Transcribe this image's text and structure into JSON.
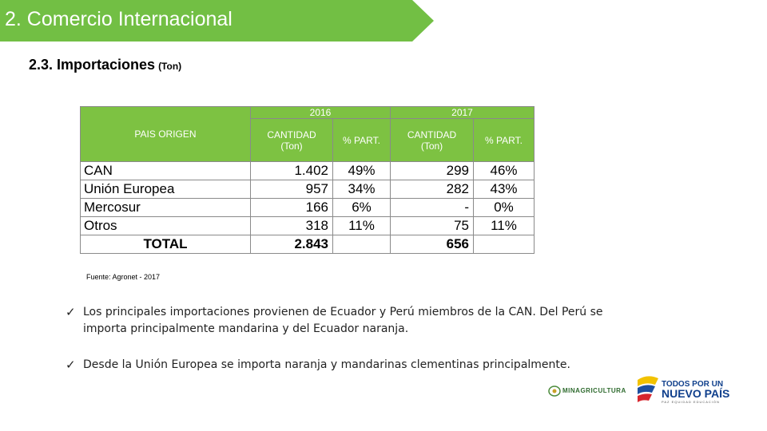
{
  "banner": {
    "title": "2. Comercio Internacional",
    "color": "#72bf44"
  },
  "subtitle": {
    "text": "2.3. Importaciones",
    "unit": "(Ton)"
  },
  "table": {
    "header": {
      "origin": "PAIS ORIGEN",
      "years": [
        "2016",
        "2017"
      ],
      "quantity_line1": "CANTIDAD",
      "quantity_line2": "(Ton)",
      "share": "% PART."
    },
    "rows": [
      {
        "origin": "CAN",
        "qty2016": "1.402",
        "pct2016": "49%",
        "qty2017": "299",
        "pct2017": "46%"
      },
      {
        "origin": "Unión Europea",
        "qty2016": "957",
        "pct2016": "34%",
        "qty2017": "282",
        "pct2017": "43%"
      },
      {
        "origin": "Mercosur",
        "qty2016": "166",
        "pct2016": "6%",
        "qty2017": "-",
        "pct2017": "0%"
      },
      {
        "origin": "Otros",
        "qty2016": "318",
        "pct2016": "11%",
        "qty2017": "75",
        "pct2017": "11%"
      }
    ],
    "total": {
      "label": "TOTAL",
      "qty2016": "2.843",
      "qty2017": "656"
    },
    "header_color": "#7dc242"
  },
  "source": "Fuente: Agronet - 2017",
  "bullets": [
    {
      "check": "✓",
      "text": "Los principales importaciones provienen de Ecuador y Perú miembros de la CAN. Del Perú se importa principalmente mandarina y del Ecuador naranja."
    },
    {
      "check": "✓",
      "text": "Desde la Unión Europea se importa naranja y mandarinas clementinas principalmente."
    }
  ],
  "logos": {
    "minagri": "MINAGRICULTURA",
    "gov_line1": "TODOS POR UN",
    "gov_line2": "NUEVO PAÍS",
    "gov_line3": "PAZ  EQUIDAD  EDUCACIÓN"
  }
}
